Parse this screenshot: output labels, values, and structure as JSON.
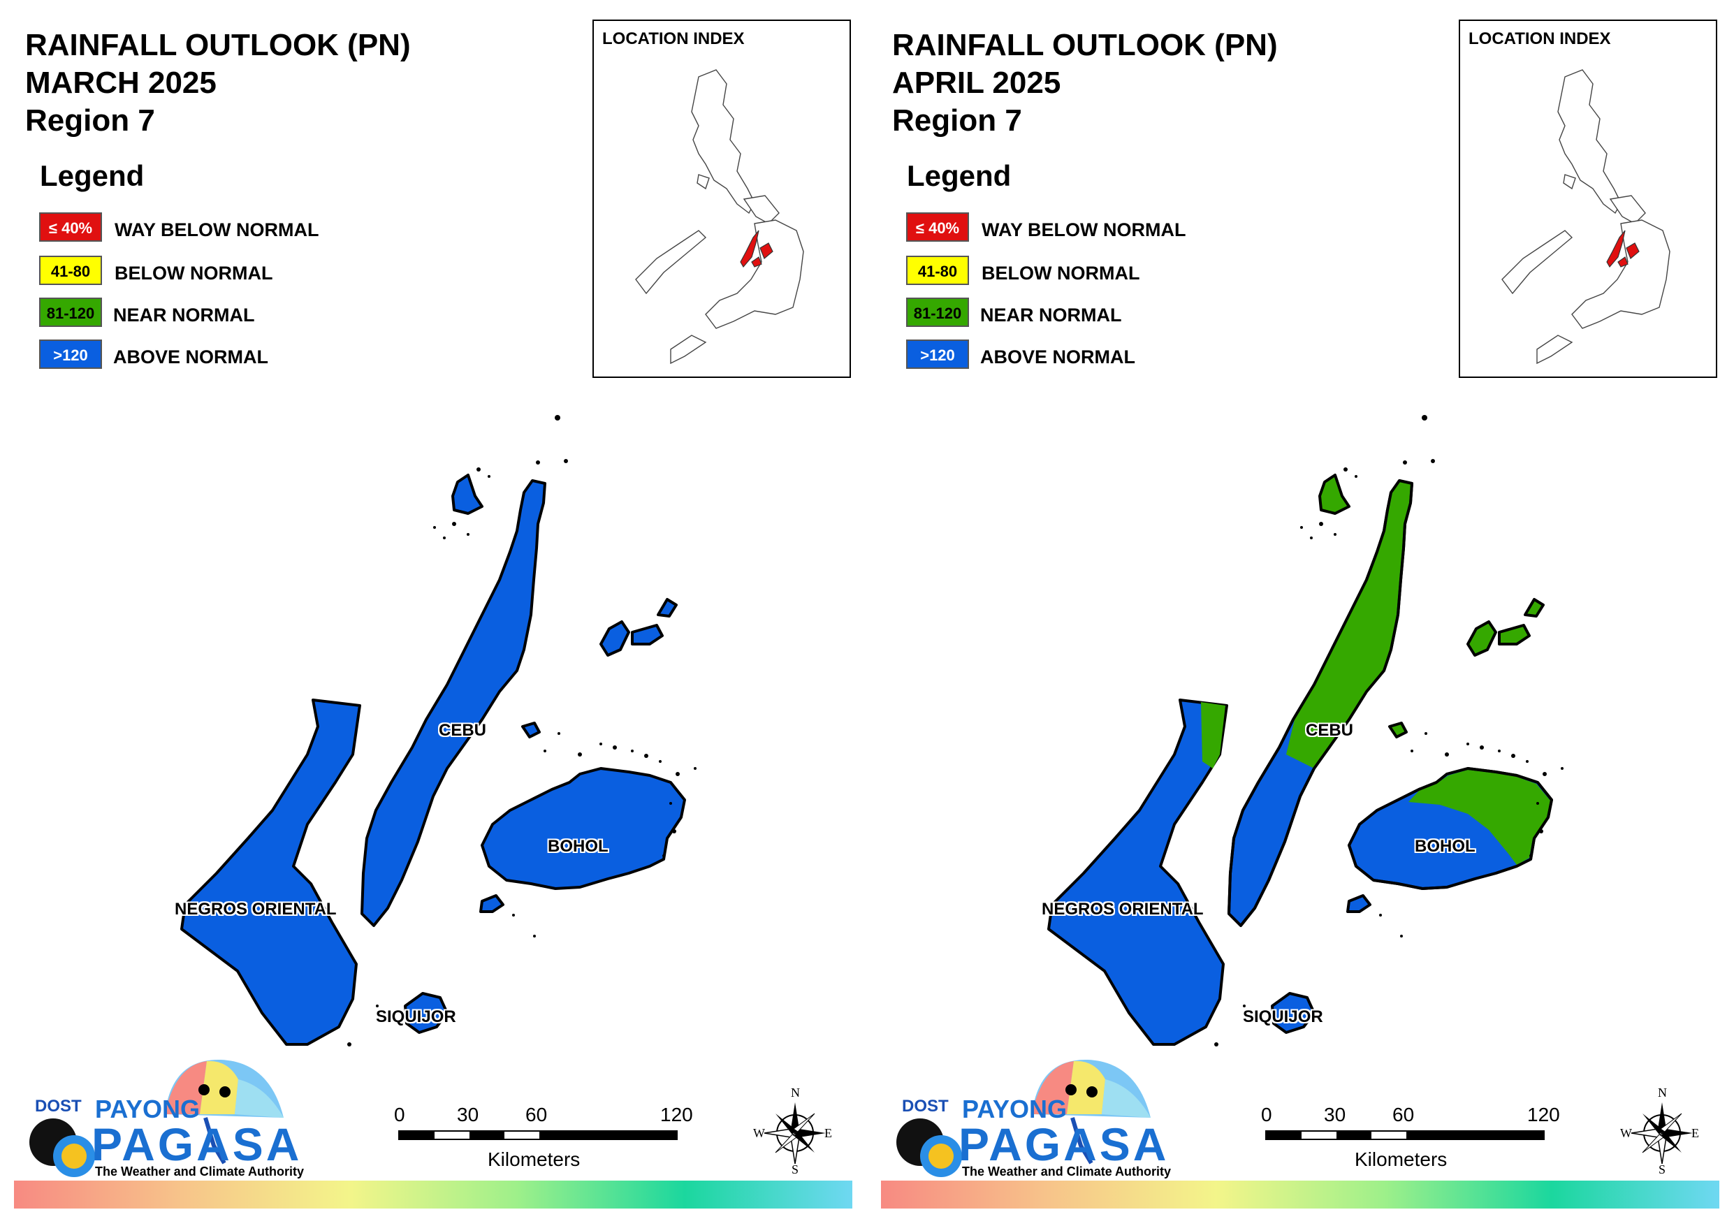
{
  "panels": [
    {
      "title": {
        "line1": "RAINFALL OUTLOOK (PN)",
        "line2": "MARCH 2025",
        "line3": "Region 7"
      },
      "legend": {
        "title": "Legend",
        "items": [
          {
            "swatch_text": "≤ 40%",
            "label": "WAY BELOW NORMAL",
            "color": "#e01010",
            "text_color": "#ffffff"
          },
          {
            "swatch_text": "41-80",
            "label": "BELOW NORMAL",
            "color": "#ffff00",
            "text_color": "#000000"
          },
          {
            "swatch_text": "81-120",
            "label": "NEAR NORMAL",
            "color": "#35a800",
            "text_color": "#000000"
          },
          {
            "swatch_text": ">120",
            "label": "ABOVE NORMAL",
            "color": "#0a5fe0",
            "text_color": "#ffffff"
          }
        ]
      },
      "inset": {
        "title": "LOCATION INDEX"
      },
      "map": {
        "labels": {
          "cebu": "CEBU",
          "bohol": "BOHOL",
          "negros": "NEGROS ORIENTAL",
          "siquijor": "SIQUIJOR"
        },
        "regions": {
          "negros": [
            "above-normal"
          ],
          "cebu": [
            "above-normal"
          ],
          "bohol": [
            "above-normal"
          ],
          "siquijor": [
            "above-normal"
          ]
        }
      },
      "logo": {
        "agency": "DOST",
        "brand_top": "PAYONG",
        "brand_main": "PAGASA",
        "tagline": "The Weather and Climate Authority"
      },
      "scale": {
        "ticks": [
          "0",
          "30",
          "60",
          "120"
        ],
        "unit": "Kilometers"
      },
      "compass": {
        "n": "N",
        "s": "S",
        "e": "E",
        "w": "W"
      }
    },
    {
      "title": {
        "line1": "RAINFALL OUTLOOK (PN)",
        "line2": "APRIL 2025",
        "line3": "Region 7"
      },
      "legend": {
        "title": "Legend",
        "items": [
          {
            "swatch_text": "≤ 40%",
            "label": "WAY BELOW NORMAL",
            "color": "#e01010",
            "text_color": "#ffffff"
          },
          {
            "swatch_text": "41-80",
            "label": "BELOW NORMAL",
            "color": "#ffff00",
            "text_color": "#000000"
          },
          {
            "swatch_text": "81-120",
            "label": "NEAR NORMAL",
            "color": "#35a800",
            "text_color": "#000000"
          },
          {
            "swatch_text": ">120",
            "label": "ABOVE NORMAL",
            "color": "#0a5fe0",
            "text_color": "#ffffff"
          }
        ]
      },
      "inset": {
        "title": "LOCATION INDEX"
      },
      "map": {
        "labels": {
          "cebu": "CEBU",
          "bohol": "BOHOL",
          "negros": "NEGROS ORIENTAL",
          "siquijor": "SIQUIJOR"
        },
        "regions": {
          "negros": [
            "above-normal",
            "near-normal (northeast tip)"
          ],
          "cebu": [
            "near-normal (north and central)",
            "above-normal (south)"
          ],
          "bohol": [
            "near-normal (north and east)",
            "above-normal (south-west)"
          ],
          "siquijor": [
            "above-normal"
          ]
        }
      },
      "logo": {
        "agency": "DOST",
        "brand_top": "PAYONG",
        "brand_main": "PAGASA",
        "tagline": "The Weather and Climate Authority"
      },
      "scale": {
        "ticks": [
          "0",
          "30",
          "60",
          "120"
        ],
        "unit": "Kilometers"
      },
      "compass": {
        "n": "N",
        "s": "S",
        "e": "E",
        "w": "W"
      }
    }
  ],
  "colors": {
    "above_normal": "#0a5fe0",
    "near_normal": "#35a800",
    "highlight_region": "#e01010",
    "outline": "#000000"
  }
}
